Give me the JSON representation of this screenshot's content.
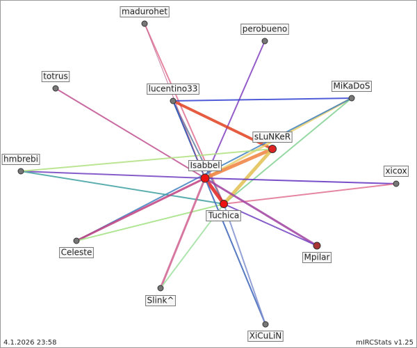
{
  "nodes": [
    {
      "label": "madurohet"
    },
    {
      "label": "perobueno"
    },
    {
      "label": "totrus"
    },
    {
      "label": "lucentino33"
    },
    {
      "label": "MiKaDoS"
    },
    {
      "label": "sLuNKeR"
    },
    {
      "label": "hmbrebi"
    },
    {
      "label": "Isabbel"
    },
    {
      "label": "xicox"
    },
    {
      "label": "Tuchica"
    },
    {
      "label": "Celeste"
    },
    {
      "label": "Mpilar"
    },
    {
      "label": "Slink^"
    },
    {
      "label": "XiCuLiN"
    }
  ],
  "footer": {
    "date": "4.1.2026 23:58",
    "version": "mIRCStats v1.25"
  }
}
